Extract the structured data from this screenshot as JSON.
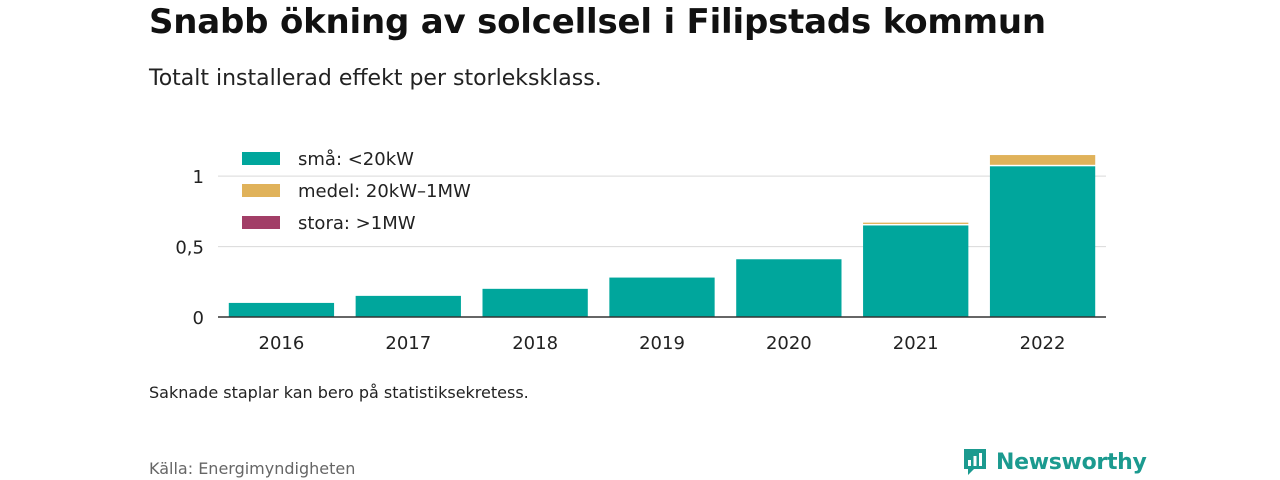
{
  "title": "Snabb ökning av solcellsel i Filipstads kommun",
  "subtitle": "Totalt installerad effekt per storleksklass.",
  "note": "Saknade staplar kan bero på statistiksekretess.",
  "source": "Källa: Energimyndigheten",
  "brand": {
    "name": "Newsworthy",
    "icon": "newsworthy-logo-icon",
    "color": "#1b9a8f"
  },
  "chart_data": {
    "type": "bar",
    "stacked": true,
    "categories": [
      "2016",
      "2017",
      "2018",
      "2019",
      "2020",
      "2021",
      "2022"
    ],
    "series": [
      {
        "name": "små: <20kW",
        "color": "#00a69c",
        "values": [
          0.1,
          0.15,
          0.2,
          0.28,
          0.41,
          0.65,
          1.07
        ]
      },
      {
        "name": "medel: 20kW–1MW",
        "color": "#e0b25a",
        "values": [
          0,
          0,
          0,
          0,
          0,
          0.02,
          0.08
        ]
      },
      {
        "name": "stora: >1MW",
        "color": "#a23e67",
        "values": [
          0,
          0,
          0,
          0,
          0,
          0,
          0
        ]
      }
    ],
    "yticks": [
      {
        "value": 0,
        "label": "0"
      },
      {
        "value": 0.5,
        "label": "0,5"
      },
      {
        "value": 1,
        "label": "1"
      }
    ],
    "ylim": [
      0,
      1.2
    ],
    "grid": true,
    "legend": "top-left"
  }
}
